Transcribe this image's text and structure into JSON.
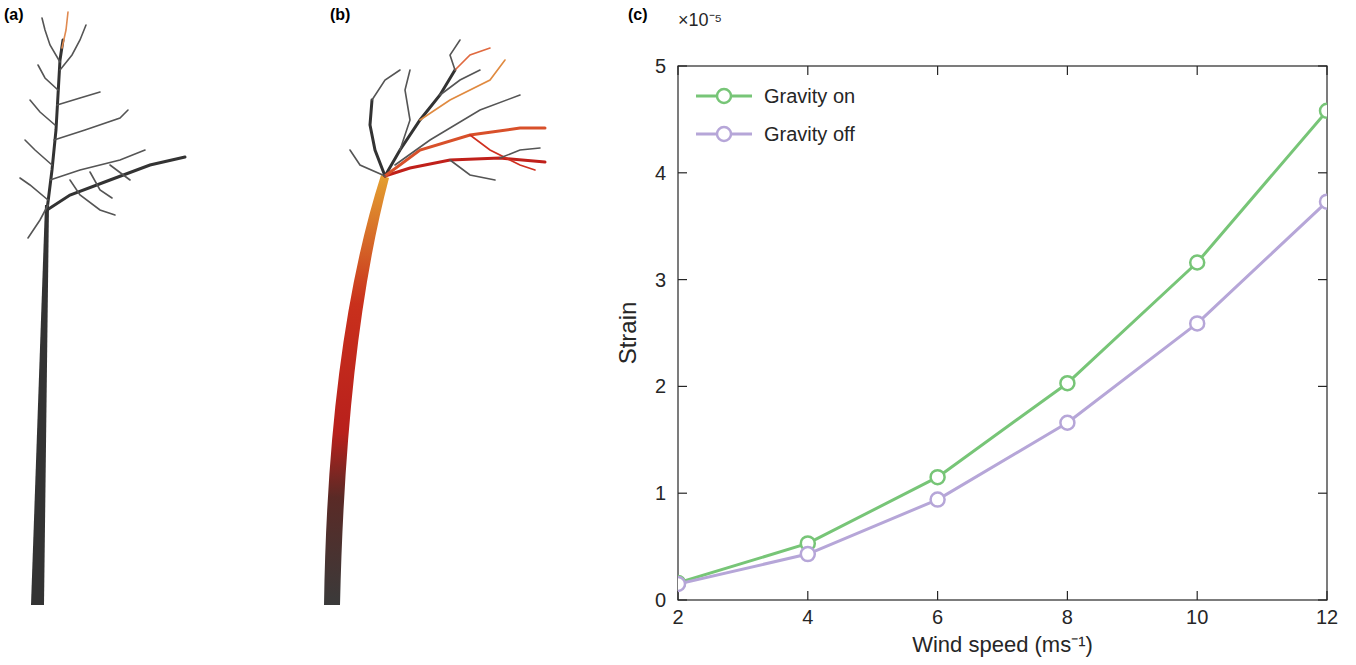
{
  "panel_labels": [
    "(a)",
    "(b)",
    "(c)"
  ],
  "chart_data": {
    "type": "line",
    "x_label": "Wind speed (ms⁻¹)",
    "y_label": "Strain",
    "y_multiplier": "×10⁻⁵",
    "x": [
      2,
      4,
      6,
      8,
      10,
      12
    ],
    "series": [
      {
        "name": "Gravity on",
        "color": "#77c577",
        "marker": "circle",
        "line_style": "solid",
        "values": [
          1.6e-06,
          5.3e-06,
          1.15e-05,
          2.03e-05,
          3.16e-05,
          4.58e-05
        ]
      },
      {
        "name": "Gravity off",
        "color": "#b6a6d8",
        "marker": "circle",
        "line_style": "solid",
        "values": [
          1.5e-06,
          4.3e-06,
          9.4e-06,
          1.66e-05,
          2.59e-05,
          3.73e-05
        ]
      }
    ],
    "xlim": [
      2,
      12
    ],
    "xticks": [
      2,
      4,
      6,
      8,
      10,
      12
    ],
    "ylim": [
      0,
      5e-05
    ],
    "yticks": [
      0,
      {
        "value": 1e-05,
        "label": "1"
      },
      {
        "value": 2e-05,
        "label": "2"
      },
      {
        "value": 3e-05,
        "label": "3"
      },
      {
        "value": 4e-05,
        "label": "4"
      },
      {
        "value": 5e-05,
        "label": "5"
      }
    ],
    "grid": false,
    "legend": "upper left"
  }
}
